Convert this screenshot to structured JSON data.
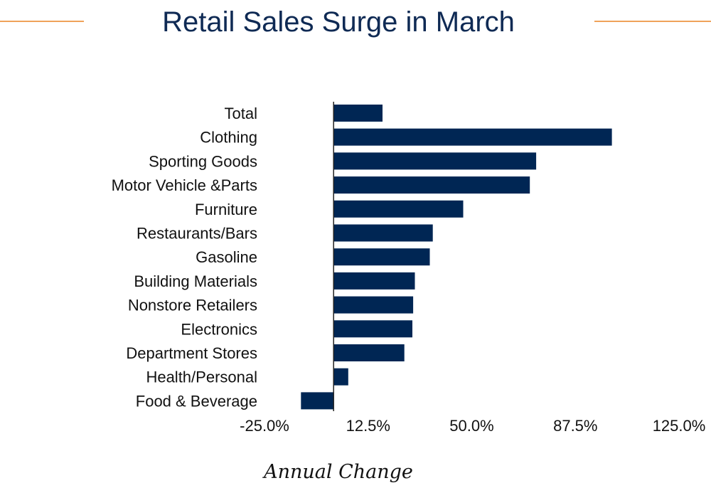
{
  "colors": {
    "bar": "#002654",
    "title": "#0f2a54",
    "accent": "#f0a25a",
    "axis": "#222222"
  },
  "chart_data": {
    "type": "bar",
    "orientation": "horizontal",
    "title": "Retail Sales Surge in March",
    "xlabel": "Annual Change",
    "ylabel": "",
    "xlim": [
      -25.0,
      125.0
    ],
    "ticks": [
      -25.0,
      12.5,
      50.0,
      87.5,
      125.0
    ],
    "tick_labels": [
      "-25.0%",
      "12.5%",
      "50.0%",
      "87.5%",
      "125.0%"
    ],
    "grid": false,
    "categories": [
      "Total",
      "Clothing",
      "Sporting Goods",
      "Motor Vehicle &Parts",
      "Furniture",
      "Restaurants/Bars",
      "Gasoline",
      "Building Materials",
      "Nonstore Retailers",
      "Electronics",
      "Department Stores",
      "Health/Personal",
      "Food & Beverage"
    ],
    "values": [
      17.7,
      100.7,
      73.3,
      71.0,
      46.9,
      35.9,
      34.8,
      29.4,
      28.8,
      28.5,
      25.6,
      5.3,
      -11.8
    ]
  }
}
